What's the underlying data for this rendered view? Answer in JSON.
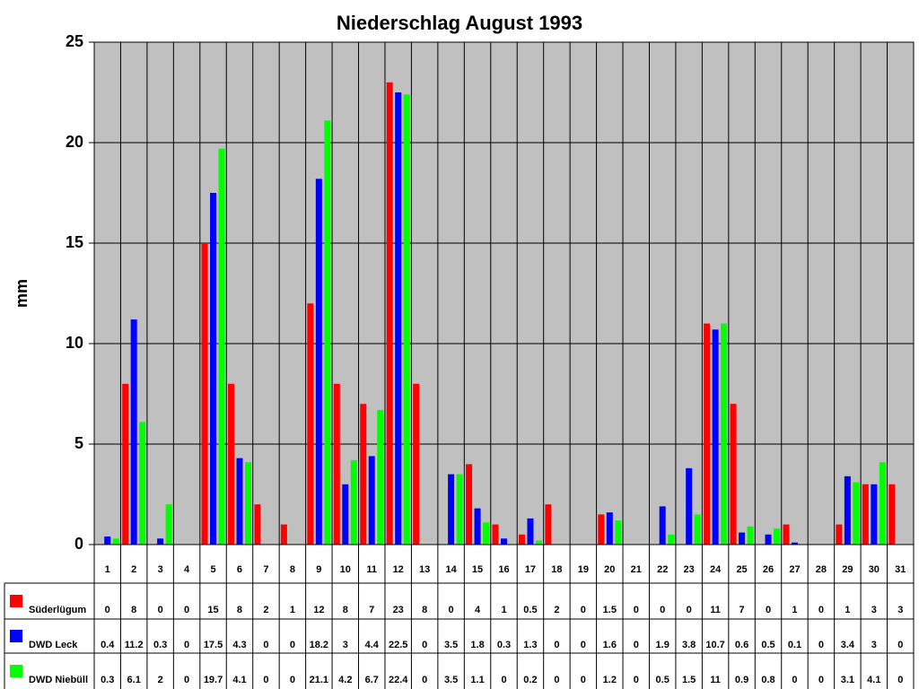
{
  "chart_data": {
    "type": "bar",
    "title": "Niederschlag August 1993",
    "y_label": "mm",
    "categories": [
      "1",
      "2",
      "3",
      "4",
      "5",
      "6",
      "7",
      "8",
      "9",
      "10",
      "11",
      "12",
      "13",
      "14",
      "15",
      "16",
      "17",
      "18",
      "19",
      "20",
      "21",
      "22",
      "23",
      "24",
      "25",
      "26",
      "27",
      "28",
      "29",
      "30",
      "31"
    ],
    "series": [
      {
        "name": "Süderlügum",
        "color": "#ff0000",
        "values": [
          0,
          8,
          0,
          0,
          15,
          8,
          2,
          1,
          12,
          8,
          7,
          23,
          8,
          0,
          4,
          1,
          0.5,
          2,
          0,
          1.5,
          0,
          0,
          0,
          11,
          7,
          0,
          1,
          0,
          1,
          3,
          3
        ]
      },
      {
        "name": "DWD Leck",
        "color": "#0000ff",
        "values": [
          0.4,
          11.2,
          0.3,
          0,
          17.5,
          4.3,
          0,
          0,
          18.2,
          3,
          4.4,
          22.5,
          0,
          3.5,
          1.8,
          0.3,
          1.3,
          0,
          0,
          1.6,
          0,
          1.9,
          3.8,
          10.7,
          0.6,
          0.5,
          0.1,
          0,
          3.4,
          3,
          0
        ]
      },
      {
        "name": "DWD Niebüll",
        "color": "#00ff00",
        "values": [
          0.3,
          6.1,
          2,
          0,
          19.7,
          4.1,
          0,
          0,
          21.1,
          4.2,
          6.7,
          22.4,
          0,
          3.5,
          1.1,
          0,
          0.2,
          0,
          0,
          1.2,
          0,
          0.5,
          1.5,
          11,
          0.9,
          0.8,
          0,
          0,
          3.1,
          4.1,
          0
        ]
      }
    ],
    "ylim": [
      0,
      25
    ],
    "yticks": [
      0,
      5,
      10,
      15,
      20,
      25
    ],
    "grid": true,
    "background": "#c0c0c0"
  }
}
